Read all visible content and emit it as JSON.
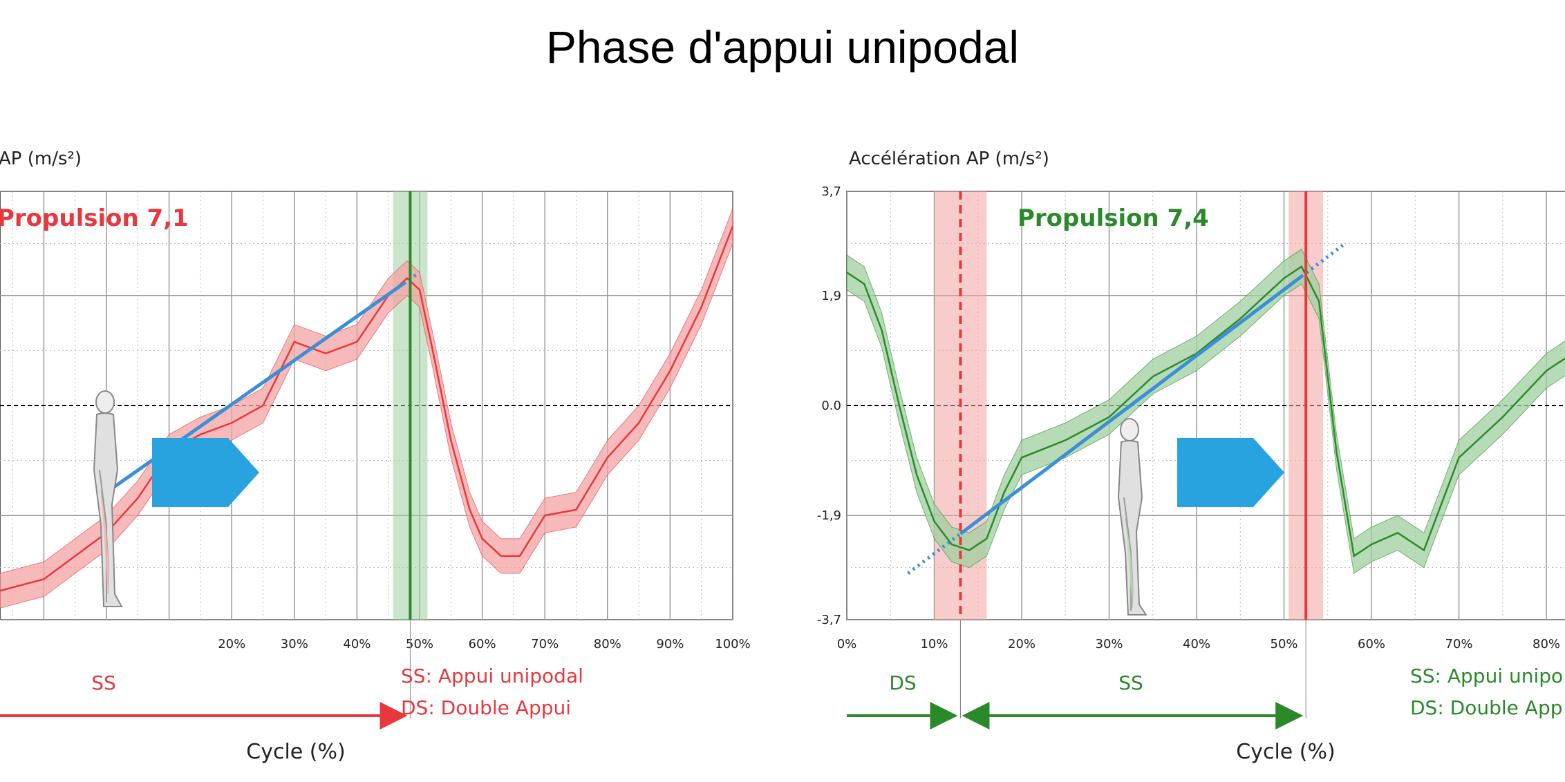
{
  "title": "Phase d'appui unipodal",
  "colors": {
    "red": "#e8383d",
    "green": "#2a8a2a",
    "blue": "#3a8fd8",
    "arrow": "#29a3e0",
    "red_band": "#f4a3a3",
    "green_band": "#9fcf9f"
  },
  "chart_data": [
    {
      "type": "line",
      "ylabel": "AP (m/s²)",
      "xlabel": "Cycle (%)",
      "xlim": [
        -17,
        100
      ],
      "ylim": [
        -3.7,
        3.7
      ],
      "x_ticks": [
        "20%",
        "30%",
        "40%",
        "50%",
        "60%",
        "70%",
        "80%",
        "90%",
        "100%"
      ],
      "annotation": "Propulsion 7,1",
      "event_x": 48.5,
      "trend": {
        "x": [
          0,
          50
        ],
        "y": [
          -1.5,
          2.3
        ]
      },
      "segments": [
        {
          "label": "SS",
          "from": -17,
          "to": 48.5
        }
      ],
      "legend": [
        "SS: Appui unipodal",
        "DS: Double Appui"
      ],
      "series": [
        {
          "x": [
            -17,
            -10,
            -5,
            0,
            5,
            10,
            15,
            20,
            25,
            30,
            35,
            40,
            45,
            48,
            50,
            52,
            55,
            58,
            60,
            63,
            66,
            70,
            75,
            80,
            85,
            90,
            95,
            100
          ],
          "values": [
            -3.2,
            -3.0,
            -2.6,
            -2.2,
            -1.6,
            -0.8,
            -0.5,
            -0.3,
            0.0,
            1.1,
            0.9,
            1.1,
            1.9,
            2.2,
            2.0,
            1.0,
            -0.6,
            -1.8,
            -2.3,
            -2.6,
            -2.6,
            -1.9,
            -1.8,
            -0.9,
            -0.3,
            0.6,
            1.7,
            3.1
          ]
        }
      ]
    },
    {
      "type": "line",
      "ylabel": "Accélération AP (m/s²)",
      "xlabel": "Cycle (%)",
      "xlim": [
        0,
        83
      ],
      "ylim": [
        -3.7,
        3.7
      ],
      "y_ticks": [
        "3,7",
        "1,9",
        "0.0",
        "-1,9",
        "-3,7"
      ],
      "x_ticks": [
        "0%",
        "10%",
        "20%",
        "30%",
        "40%",
        "50%",
        "60%",
        "70%",
        "80%"
      ],
      "annotation": "Propulsion 7,4",
      "event_x_dashed": 13,
      "event_x": 52.5,
      "trend": {
        "x": [
          7,
          57
        ],
        "y": [
          -2.9,
          2.8
        ]
      },
      "segments": [
        {
          "label": "DS",
          "from": 0,
          "to": 13
        },
        {
          "label": "SS",
          "from": 13,
          "to": 52.5
        }
      ],
      "legend": [
        "SS: Appui unipo",
        "DS: Double App"
      ],
      "series": [
        {
          "x": [
            0,
            2,
            4,
            6,
            8,
            10,
            12,
            14,
            16,
            18,
            20,
            25,
            30,
            35,
            40,
            45,
            50,
            52,
            54,
            56,
            58,
            60,
            63,
            66,
            70,
            75,
            80,
            83
          ],
          "values": [
            2.3,
            2.1,
            1.3,
            0.0,
            -1.2,
            -2.0,
            -2.4,
            -2.5,
            -2.3,
            -1.5,
            -0.9,
            -0.6,
            -0.2,
            0.5,
            0.9,
            1.5,
            2.2,
            2.4,
            1.8,
            -0.8,
            -2.6,
            -2.4,
            -2.2,
            -2.5,
            -0.9,
            -0.2,
            0.6,
            0.9
          ]
        }
      ]
    }
  ]
}
